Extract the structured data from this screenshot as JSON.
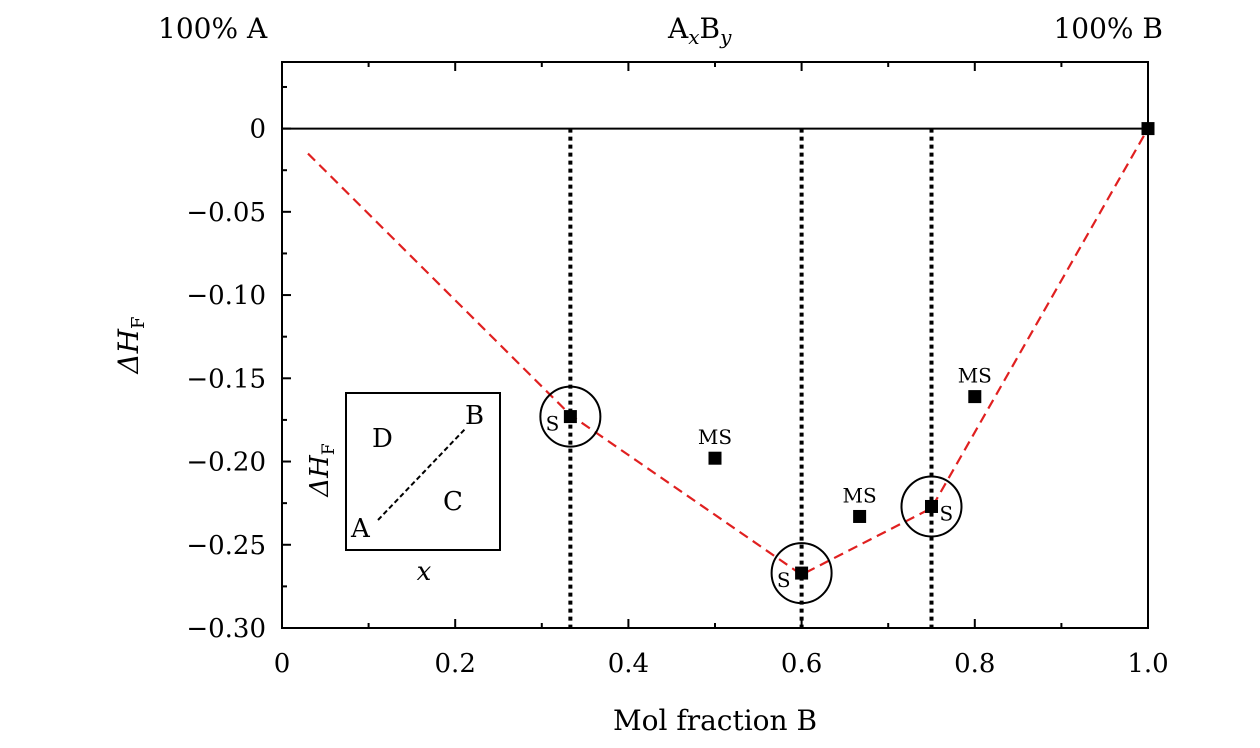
{
  "chart_data": {
    "type": "scatter",
    "xlabel": "Mol fraction B",
    "ylabel_main": "ΔH",
    "ylabel_sub": "F",
    "xlim": [
      0,
      1.0
    ],
    "ylim": [
      -0.3,
      0.04
    ],
    "x_ticks": [
      {
        "value": 0,
        "label": "0"
      },
      {
        "value": 0.2,
        "label": "0.2"
      },
      {
        "value": 0.4,
        "label": "0.4"
      },
      {
        "value": 0.6,
        "label": "0.6"
      },
      {
        "value": 0.8,
        "label": "0.8"
      },
      {
        "value": 1.0,
        "label": "1.0"
      }
    ],
    "x_minor_ticks": [
      0.1,
      0.3,
      0.5,
      0.7,
      0.9
    ],
    "y_ticks": [
      {
        "value": 0,
        "label": "0"
      },
      {
        "value": -0.05,
        "label": "−0.05"
      },
      {
        "value": -0.1,
        "label": "−0.10"
      },
      {
        "value": -0.15,
        "label": "−0.15"
      },
      {
        "value": -0.2,
        "label": "−0.20"
      },
      {
        "value": -0.25,
        "label": "−0.25"
      },
      {
        "value": -0.3,
        "label": "−0.30"
      }
    ],
    "y_minor_ticks": [
      0.025,
      -0.025,
      -0.075,
      -0.125,
      -0.175,
      -0.225,
      -0.275
    ],
    "top_labels": {
      "left": "100% A",
      "center_main": "A",
      "center_sub1": "x",
      "center_main2": "B",
      "center_sub2": "y",
      "right": "100% B"
    },
    "zero_line": 0,
    "vertical_dotted_lines": [
      0.333,
      0.6,
      0.75
    ],
    "hull_line": {
      "color": "#e02020",
      "points": [
        {
          "x": 0.03,
          "y": -0.015
        },
        {
          "x": 0.333,
          "y": -0.172
        },
        {
          "x": 0.6,
          "y": -0.268
        },
        {
          "x": 0.75,
          "y": -0.228
        },
        {
          "x": 1.0,
          "y": 0
        }
      ]
    },
    "points": [
      {
        "x": 0.333,
        "y": -0.173,
        "label": "S",
        "circled": true,
        "label_pos": "left"
      },
      {
        "x": 0.6,
        "y": -0.267,
        "label": "S",
        "circled": true,
        "label_pos": "left"
      },
      {
        "x": 0.75,
        "y": -0.227,
        "label": "S",
        "circled": true,
        "label_pos": "right"
      },
      {
        "x": 0.5,
        "y": -0.198,
        "label": "MS",
        "circled": false,
        "label_pos": "above"
      },
      {
        "x": 0.667,
        "y": -0.233,
        "label": "MS",
        "circled": false,
        "label_pos": "above"
      },
      {
        "x": 0.8,
        "y": -0.161,
        "label": "MS",
        "circled": false,
        "label_pos": "above"
      },
      {
        "x": 1.0,
        "y": 0,
        "label": "",
        "circled": false,
        "label_pos": "none"
      }
    ],
    "inset": {
      "label_D": "D",
      "label_C": "C",
      "label_A": "A",
      "label_B": "B",
      "xlabel": "x",
      "ylabel_main": "ΔH",
      "ylabel_sub": "F"
    }
  }
}
